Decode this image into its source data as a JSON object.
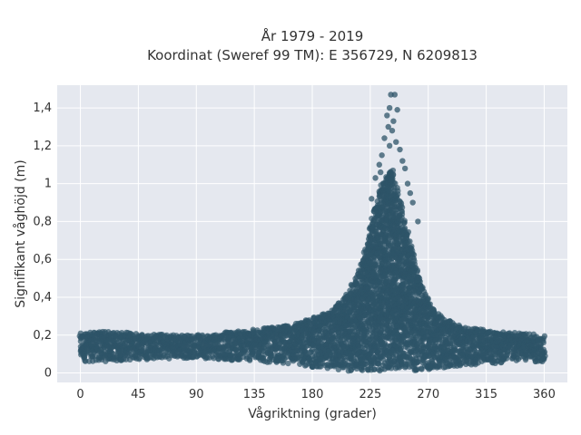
{
  "chart_data": {
    "type": "scatter",
    "title": [
      "År 1979 - 2019",
      "Koordinat (Sweref 99 TM): E 356729, N 6209813"
    ],
    "xlabel": "Vågriktning (grader)",
    "ylabel": "Signifikant våghöjd (m)",
    "xlim": [
      -18,
      378
    ],
    "ylim": [
      -0.05,
      1.52
    ],
    "xticks": [
      0,
      45,
      90,
      135,
      180,
      225,
      270,
      315,
      360
    ],
    "xtick_labels": [
      "0",
      "45",
      "90",
      "135",
      "180",
      "225",
      "270",
      "315",
      "360"
    ],
    "yticks": [
      0,
      0.2,
      0.4,
      0.6,
      0.8,
      1.0,
      1.2,
      1.4
    ],
    "ytick_labels": [
      "0",
      "0,2",
      "0,4",
      "0,6",
      "0,8",
      "1",
      "1,2",
      "1,4"
    ],
    "grid": true,
    "marker_color": "#2e5468",
    "plot_background": "#e5e8ef",
    "envelope": {
      "x": [
        0,
        20,
        45,
        90,
        135,
        160,
        180,
        195,
        205,
        215,
        222,
        228,
        233,
        238,
        242,
        246,
        250,
        255,
        260,
        265,
        270,
        280,
        290,
        300,
        315,
        330,
        345,
        360
      ],
      "y_min": [
        0.06,
        0.06,
        0.07,
        0.08,
        0.06,
        0.05,
        0.03,
        0.02,
        0.01,
        0.01,
        0.01,
        0.01,
        0.01,
        0.01,
        0.01,
        0.01,
        0.01,
        0.01,
        0.01,
        0.01,
        0.02,
        0.02,
        0.03,
        0.04,
        0.05,
        0.05,
        0.06,
        0.06
      ],
      "y_max": [
        0.21,
        0.22,
        0.21,
        0.2,
        0.23,
        0.25,
        0.29,
        0.33,
        0.4,
        0.52,
        0.68,
        0.85,
        0.98,
        1.05,
        1.08,
        0.98,
        0.86,
        0.72,
        0.58,
        0.46,
        0.38,
        0.3,
        0.26,
        0.24,
        0.23,
        0.22,
        0.21,
        0.2
      ]
    },
    "outliers": [
      {
        "x": 241,
        "y": 1.47
      },
      {
        "x": 244,
        "y": 1.47
      },
      {
        "x": 240,
        "y": 1.4
      },
      {
        "x": 246,
        "y": 1.39
      },
      {
        "x": 238,
        "y": 1.36
      },
      {
        "x": 243,
        "y": 1.33
      },
      {
        "x": 239,
        "y": 1.3
      },
      {
        "x": 242,
        "y": 1.28
      },
      {
        "x": 236,
        "y": 1.24
      },
      {
        "x": 245,
        "y": 1.22
      },
      {
        "x": 240,
        "y": 1.2
      },
      {
        "x": 248,
        "y": 1.18
      },
      {
        "x": 234,
        "y": 1.15
      },
      {
        "x": 250,
        "y": 1.12
      },
      {
        "x": 232,
        "y": 1.1
      },
      {
        "x": 252,
        "y": 1.08
      },
      {
        "x": 233,
        "y": 1.06
      },
      {
        "x": 229,
        "y": 1.03
      },
      {
        "x": 254,
        "y": 1.0
      },
      {
        "x": 256,
        "y": 0.95
      },
      {
        "x": 258,
        "y": 0.9
      },
      {
        "x": 226,
        "y": 0.92
      },
      {
        "x": 262,
        "y": 0.8
      }
    ]
  }
}
